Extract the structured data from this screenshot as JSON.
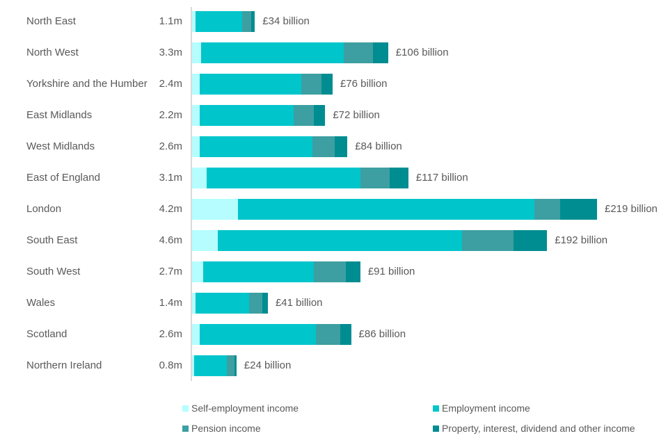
{
  "chart_data": {
    "type": "bar",
    "orientation": "horizontal",
    "stacked": true,
    "title": "",
    "xlabel": "",
    "ylabel": "",
    "unit": "£ billion",
    "xlim": [
      0,
      230
    ],
    "grid": false,
    "legend_position": "bottom",
    "series_names": [
      "Self-employment income",
      "Employment income",
      "Pension income",
      "Property, interest, dividend and other income"
    ],
    "series_colors": [
      "#b5fdff",
      "#00c5cb",
      "#3d9fa1",
      "#008d91"
    ],
    "rows": [
      {
        "region": "North East",
        "taxpayers": "1.1m",
        "total": 34,
        "total_label": "£34 billion",
        "values": [
          2,
          25,
          5,
          2
        ]
      },
      {
        "region": "North West",
        "taxpayers": "3.3m",
        "total": 106,
        "total_label": "£106 billion",
        "values": [
          5,
          77,
          16,
          8
        ]
      },
      {
        "region": "Yorkshire and the Humber",
        "taxpayers": "2.4m",
        "total": 76,
        "total_label": "£76 billion",
        "values": [
          4,
          55,
          11,
          6
        ]
      },
      {
        "region": "East Midlands",
        "taxpayers": "2.2m",
        "total": 72,
        "total_label": "£72 billion",
        "values": [
          4,
          51,
          11,
          6
        ]
      },
      {
        "region": "West Midlands",
        "taxpayers": "2.6m",
        "total": 84,
        "total_label": "£84 billion",
        "values": [
          4,
          61,
          12,
          7
        ]
      },
      {
        "region": "East of England",
        "taxpayers": "3.1m",
        "total": 117,
        "total_label": "£117 billion",
        "values": [
          8,
          83,
          16,
          10
        ]
      },
      {
        "region": "London",
        "taxpayers": "4.2m",
        "total": 219,
        "total_label": "£219 billion",
        "values": [
          25,
          160,
          14,
          20
        ]
      },
      {
        "region": "South East",
        "taxpayers": "4.6m",
        "total": 192,
        "total_label": "£192 billion",
        "values": [
          14,
          132,
          28,
          18
        ]
      },
      {
        "region": "South West",
        "taxpayers": "2.7m",
        "total": 91,
        "total_label": "£91 billion",
        "values": [
          6,
          60,
          17,
          8
        ]
      },
      {
        "region": "Wales",
        "taxpayers": "1.4m",
        "total": 41,
        "total_label": "£41 billion",
        "values": [
          2,
          29,
          7,
          3
        ]
      },
      {
        "region": "Scotland",
        "taxpayers": "2.6m",
        "total": 86,
        "total_label": "£86 billion",
        "values": [
          4,
          63,
          13,
          6
        ]
      },
      {
        "region": "Northern Ireland",
        "taxpayers": "0.8m",
        "total": 24,
        "total_label": "£24 billion",
        "values": [
          1,
          18,
          4,
          1
        ]
      }
    ],
    "legend": [
      {
        "label": "Self-employment income",
        "color": "#b5fdff"
      },
      {
        "label": "Employment income",
        "color": "#00c5cb"
      },
      {
        "label": "Pension income",
        "color": "#3d9fa1"
      },
      {
        "label": "Property, interest, dividend and other income",
        "color": "#008d91"
      }
    ]
  },
  "style": {
    "text_color": "#595959",
    "axis_color": "#d9d9d9",
    "background": "#ffffff"
  }
}
